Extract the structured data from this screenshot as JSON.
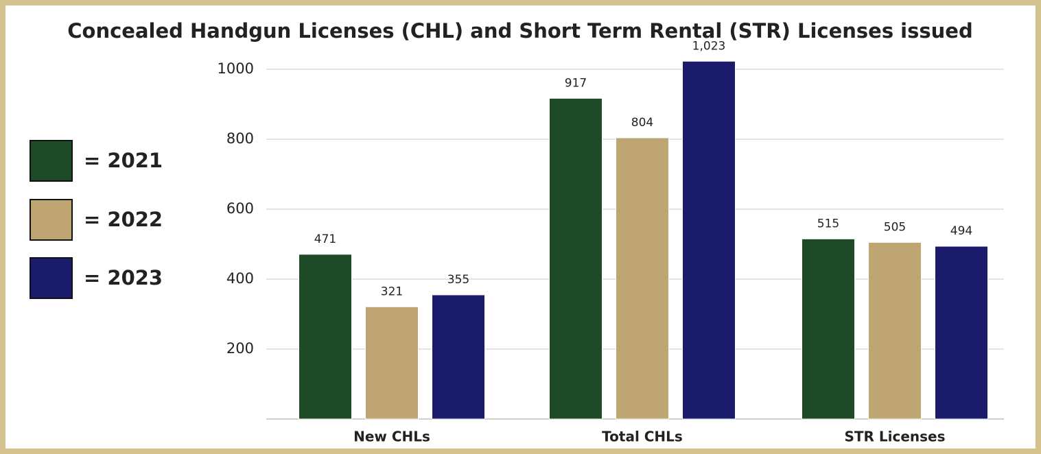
{
  "chart_data": {
    "type": "bar",
    "title": "Concealed Handgun Licenses (CHL) and Short Term Rental (STR) Licenses issued",
    "categories": [
      "New CHLs",
      "Total CHLs",
      "STR Licenses"
    ],
    "series": [
      {
        "name": "= 2021",
        "color": "#1f4a27",
        "values": [
          471,
          917,
          515
        ]
      },
      {
        "name": "= 2022",
        "color": "#bea571",
        "values": [
          321,
          804,
          505
        ]
      },
      {
        "name": "= 2023",
        "color": "#1b1b6b",
        "values": [
          355,
          1023,
          494
        ],
        "value_labels": [
          "355",
          "1,023",
          "494"
        ]
      }
    ],
    "ylim": [
      0,
      1040
    ],
    "yticks": [
      200,
      400,
      600,
      800,
      1000
    ],
    "grid": true,
    "legend": "left"
  }
}
